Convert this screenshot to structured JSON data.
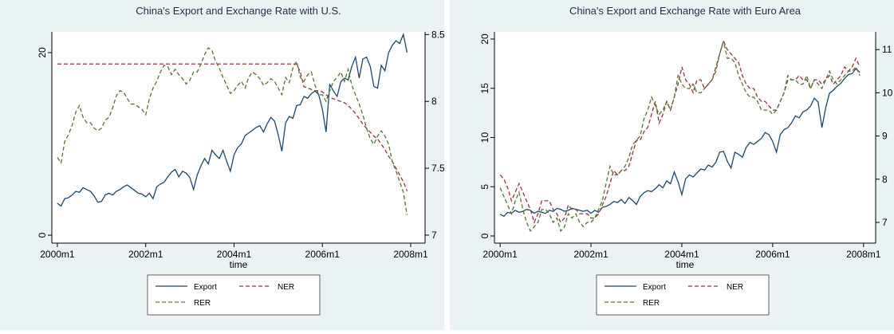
{
  "chart_data": [
    {
      "type": "line",
      "title": "China's Export and Exchange Rate with U.S.",
      "xlabel": "time",
      "legend": "bottom",
      "grid": false,
      "x": [
        480,
        481,
        482,
        483,
        484,
        485,
        486,
        487,
        488,
        489,
        490,
        491,
        492,
        493,
        494,
        495,
        496,
        497,
        498,
        499,
        500,
        501,
        502,
        503,
        504,
        505,
        506,
        507,
        508,
        509,
        510,
        511,
        512,
        513,
        514,
        515,
        516,
        517,
        518,
        519,
        520,
        521,
        522,
        523,
        524,
        525,
        526,
        527,
        528,
        529,
        530,
        531,
        532,
        533,
        534,
        535,
        536,
        537,
        538,
        539,
        540,
        541,
        542,
        543,
        544,
        545,
        546,
        547,
        548,
        549,
        550,
        551,
        552,
        553,
        554,
        555,
        556,
        557,
        558,
        559,
        560,
        561,
        562,
        563,
        564,
        565,
        566,
        567,
        568,
        569,
        570,
        571,
        572,
        573,
        574,
        575
      ],
      "xlim": [
        478.5,
        579.9
      ],
      "xticks": [
        {
          "value": 480,
          "label": "2000m1"
        },
        {
          "value": 504,
          "label": "2002m1"
        },
        {
          "value": 528,
          "label": "2004m1"
        },
        {
          "value": 552,
          "label": "2006m1"
        },
        {
          "value": 576,
          "label": "2008m1"
        }
      ],
      "ylim": [
        -0.87,
        22.27
      ],
      "yticks": [
        0,
        20
      ],
      "y2lim": [
        6.94,
        8.52
      ],
      "y2ticks": [
        7,
        7.5,
        8,
        8.5
      ],
      "series": [
        {
          "name": "Export",
          "color": "#1a476f",
          "style": "solid",
          "axis": "y",
          "values": [
            3.5,
            3.2,
            4.0,
            4.1,
            4.4,
            4.8,
            4.7,
            5.2,
            5.0,
            4.8,
            4.3,
            3.6,
            3.7,
            4.4,
            4.6,
            4.4,
            4.8,
            5.0,
            5.3,
            5.5,
            5.2,
            4.9,
            4.6,
            4.5,
            4.2,
            4.6,
            4.0,
            5.3,
            5.6,
            5.8,
            6.4,
            6.9,
            7.2,
            6.4,
            7.0,
            6.8,
            6.3,
            5.0,
            6.6,
            7.6,
            8.4,
            7.8,
            9.3,
            8.8,
            8.4,
            9.3,
            8.1,
            7.0,
            8.8,
            9.6,
            10.0,
            10.9,
            11.2,
            11.5,
            11.8,
            12.0,
            11.3,
            12.2,
            12.9,
            12.5,
            11.0,
            9.2,
            12.3,
            13.0,
            12.8,
            14.2,
            14.3,
            15.2,
            15.0,
            15.5,
            15.8,
            15.4,
            13.8,
            11.3,
            16.5,
            15.8,
            15.2,
            16.8,
            17.2,
            17.0,
            18.5,
            19.5,
            17.2,
            19.3,
            19.5,
            18.5,
            16.3,
            16.1,
            18.6,
            18.0,
            20.0,
            20.8,
            21.3,
            21.0,
            22.0,
            20.0
          ]
        },
        {
          "name": "NER",
          "color": "#90353b",
          "style": "dashed",
          "axis": "y2",
          "values": [
            8.28,
            8.28,
            8.28,
            8.28,
            8.28,
            8.28,
            8.28,
            8.28,
            8.28,
            8.28,
            8.28,
            8.28,
            8.28,
            8.28,
            8.28,
            8.28,
            8.28,
            8.28,
            8.28,
            8.28,
            8.28,
            8.28,
            8.28,
            8.28,
            8.28,
            8.28,
            8.28,
            8.28,
            8.28,
            8.28,
            8.28,
            8.28,
            8.28,
            8.28,
            8.28,
            8.28,
            8.28,
            8.28,
            8.28,
            8.28,
            8.28,
            8.28,
            8.28,
            8.28,
            8.28,
            8.28,
            8.28,
            8.28,
            8.28,
            8.28,
            8.28,
            8.28,
            8.28,
            8.28,
            8.28,
            8.28,
            8.28,
            8.28,
            8.28,
            8.28,
            8.28,
            8.28,
            8.28,
            8.28,
            8.28,
            8.28,
            8.22,
            8.11,
            8.1,
            8.09,
            8.08,
            8.08,
            8.07,
            8.05,
            8.03,
            8.02,
            8.01,
            8.0,
            7.99,
            7.97,
            7.94,
            7.91,
            7.87,
            7.83,
            7.8,
            7.77,
            7.74,
            7.72,
            7.68,
            7.64,
            7.59,
            7.55,
            7.5,
            7.45,
            7.4,
            7.33
          ]
        },
        {
          "name": "RER",
          "color": "#55752f",
          "style": "dashed",
          "axis": "y2",
          "values": [
            7.58,
            7.54,
            7.7,
            7.75,
            7.82,
            7.92,
            7.97,
            7.88,
            7.84,
            7.84,
            7.8,
            7.78,
            7.8,
            7.86,
            7.88,
            7.95,
            8.04,
            8.08,
            8.07,
            8.02,
            7.98,
            7.98,
            7.96,
            7.94,
            7.9,
            8.02,
            8.1,
            8.15,
            8.22,
            8.27,
            8.26,
            8.2,
            8.24,
            8.2,
            8.17,
            8.13,
            8.16,
            8.22,
            8.22,
            8.28,
            8.35,
            8.4,
            8.38,
            8.3,
            8.25,
            8.18,
            8.12,
            8.06,
            8.08,
            8.12,
            8.15,
            8.1,
            8.18,
            8.22,
            8.2,
            8.17,
            8.12,
            8.14,
            8.17,
            8.15,
            8.1,
            8.05,
            8.18,
            8.14,
            8.25,
            8.3,
            8.18,
            8.15,
            8.2,
            8.22,
            8.12,
            8.05,
            8.05,
            8.0,
            8.08,
            8.15,
            8.18,
            8.22,
            8.15,
            8.24,
            8.12,
            8.05,
            7.98,
            7.9,
            7.8,
            7.72,
            7.68,
            7.74,
            7.78,
            7.74,
            7.68,
            7.55,
            7.48,
            7.4,
            7.32,
            7.15
          ]
        }
      ]
    },
    {
      "type": "line",
      "title": "China's Export and Exchange Rate with Euro Area",
      "xlabel": "time",
      "legend": "bottom",
      "grid": false,
      "x": [
        480,
        481,
        482,
        483,
        484,
        485,
        486,
        487,
        488,
        489,
        490,
        491,
        492,
        493,
        494,
        495,
        496,
        497,
        498,
        499,
        500,
        501,
        502,
        503,
        504,
        505,
        506,
        507,
        508,
        509,
        510,
        511,
        512,
        513,
        514,
        515,
        516,
        517,
        518,
        519,
        520,
        521,
        522,
        523,
        524,
        525,
        526,
        527,
        528,
        529,
        530,
        531,
        532,
        533,
        534,
        535,
        536,
        537,
        538,
        539,
        540,
        541,
        542,
        543,
        544,
        545,
        546,
        547,
        548,
        549,
        550,
        551,
        552,
        553,
        554,
        555,
        556,
        557,
        558,
        559,
        560,
        561,
        562,
        563,
        564,
        565,
        566,
        567,
        568,
        569,
        570,
        571,
        572,
        573,
        574,
        575
      ],
      "xlim": [
        478.5,
        579.2
      ],
      "xticks": [
        {
          "value": 480,
          "label": "2000m1"
        },
        {
          "value": 504,
          "label": "2002m1"
        },
        {
          "value": 528,
          "label": "2004m1"
        },
        {
          "value": 552,
          "label": "2006m1"
        },
        {
          "value": 576,
          "label": "2008m1"
        }
      ],
      "ylim": [
        -0.73,
        20.73
      ],
      "yticks": [
        0,
        5,
        10,
        15,
        20
      ],
      "y2lim": [
        6.52,
        11.41
      ],
      "y2ticks": [
        7,
        8,
        9,
        10,
        11
      ],
      "series": [
        {
          "name": "Export",
          "color": "#1a476f",
          "style": "solid",
          "axis": "y",
          "values": [
            2.2,
            2.0,
            2.4,
            2.3,
            2.6,
            2.4,
            2.5,
            2.7,
            2.6,
            2.3,
            2.5,
            2.4,
            2.3,
            2.6,
            2.5,
            2.8,
            2.7,
            2.5,
            2.6,
            2.8,
            2.7,
            2.6,
            2.5,
            2.6,
            2.3,
            2.6,
            2.4,
            2.9,
            3.0,
            3.2,
            3.5,
            3.4,
            3.7,
            3.3,
            3.9,
            3.6,
            3.2,
            4.0,
            4.4,
            4.6,
            4.5,
            4.8,
            5.2,
            4.9,
            5.6,
            5.3,
            6.5,
            5.5,
            4.2,
            5.8,
            6.2,
            6.0,
            6.4,
            6.8,
            6.7,
            7.2,
            7.0,
            7.5,
            8.5,
            8.6,
            7.6,
            6.9,
            8.5,
            8.3,
            8.0,
            9.0,
            9.5,
            9.3,
            9.6,
            9.9,
            10.5,
            10.3,
            9.6,
            8.5,
            10.3,
            10.8,
            11.0,
            11.5,
            12.2,
            12.0,
            12.6,
            12.8,
            13.2,
            14.0,
            13.6,
            11.0,
            13.0,
            14.5,
            14.8,
            15.2,
            15.5,
            16.0,
            16.4,
            16.5,
            17.0,
            16.6
          ]
        },
        {
          "name": "NER",
          "color": "#90353b",
          "style": "dashed",
          "axis": "y2",
          "values": [
            8.1,
            8.0,
            7.8,
            7.5,
            7.7,
            7.9,
            7.7,
            7.5,
            7.3,
            7.0,
            7.2,
            7.5,
            7.5,
            7.5,
            7.3,
            7.2,
            7.0,
            7.1,
            7.4,
            7.3,
            7.3,
            7.2,
            7.2,
            7.2,
            7.1,
            7.1,
            7.2,
            7.4,
            7.6,
            7.9,
            8.2,
            8.1,
            8.2,
            8.2,
            8.3,
            8.6,
            8.9,
            8.9,
            9.1,
            9.2,
            9.5,
            9.8,
            9.3,
            9.5,
            9.8,
            9.6,
            9.9,
            10.2,
            10.6,
            10.3,
            10.2,
            10.0,
            10.3,
            10.3,
            10.1,
            10.2,
            10.3,
            10.6,
            10.9,
            11.2,
            11.0,
            10.9,
            10.8,
            10.7,
            10.4,
            10.2,
            10.1,
            10.1,
            9.9,
            9.8,
            9.8,
            9.7,
            9.6,
            9.6,
            9.8,
            10.0,
            10.3,
            10.3,
            10.3,
            10.4,
            10.3,
            10.3,
            10.1,
            10.3,
            10.3,
            10.2,
            10.3,
            10.4,
            10.2,
            10.3,
            10.4,
            10.6,
            10.5,
            10.6,
            10.8,
            10.6
          ]
        },
        {
          "name": "RER",
          "color": "#55752f",
          "style": "dashed",
          "axis": "y2",
          "values": [
            7.8,
            7.6,
            7.4,
            7.2,
            7.5,
            7.7,
            7.3,
            7.0,
            6.8,
            6.9,
            7.0,
            7.3,
            7.3,
            7.2,
            7.0,
            7.1,
            6.8,
            6.9,
            7.2,
            7.1,
            7.2,
            7.0,
            6.9,
            7.0,
            7.0,
            7.1,
            7.3,
            7.5,
            7.9,
            8.3,
            8.1,
            8.1,
            8.2,
            8.3,
            8.5,
            8.8,
            8.9,
            9.0,
            9.4,
            9.6,
            9.9,
            9.7,
            9.5,
            9.6,
            9.8,
            9.6,
            9.9,
            10.4,
            10.2,
            10.1,
            10.1,
            10.2,
            10.0,
            10.0,
            10.1,
            10.2,
            10.3,
            10.5,
            10.9,
            11.2,
            10.8,
            10.8,
            10.7,
            10.4,
            10.2,
            10.0,
            9.9,
            9.9,
            9.8,
            9.6,
            9.6,
            9.6,
            9.5,
            9.6,
            9.8,
            10.0,
            10.4,
            10.3,
            10.3,
            10.2,
            10.2,
            10.4,
            10.1,
            10.3,
            10.2,
            10.1,
            10.3,
            10.5,
            10.3,
            10.2,
            10.3,
            10.4,
            10.5,
            10.5,
            10.6,
            10.4
          ]
        }
      ]
    }
  ]
}
